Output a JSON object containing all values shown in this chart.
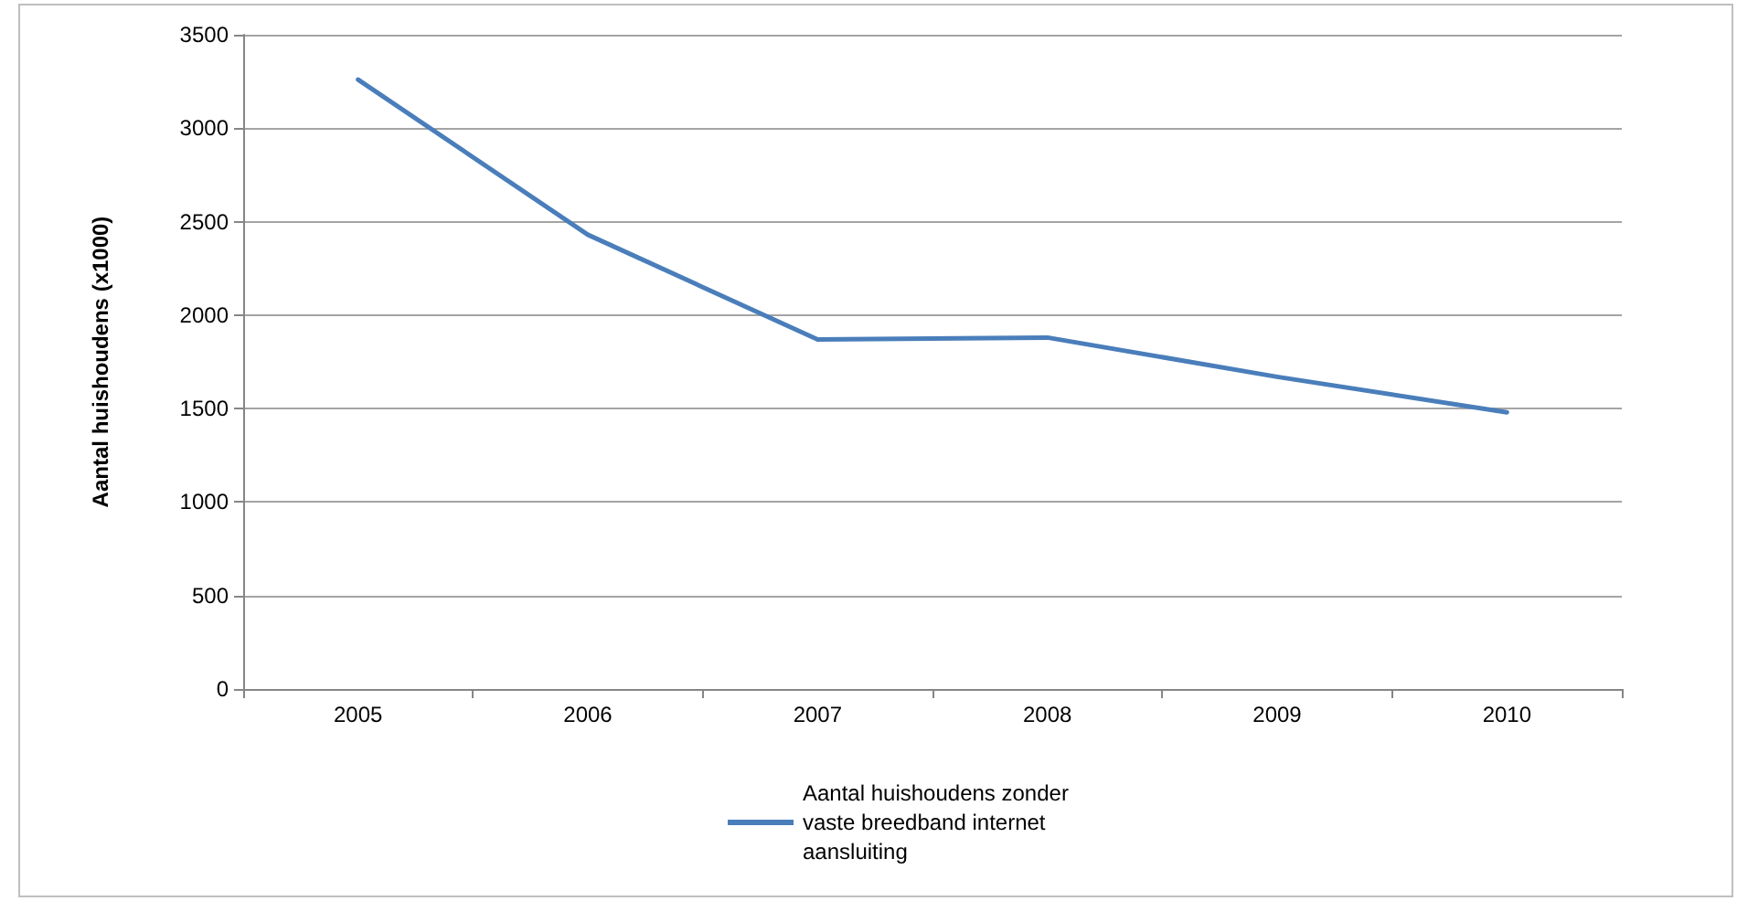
{
  "chart_data": {
    "type": "line",
    "ylabel": "Aantal huishoudens (x1000)",
    "categories": [
      "2005",
      "2006",
      "2007",
      "2008",
      "2009",
      "2010"
    ],
    "series": [
      {
        "name": "Aantal huishoudens zonder vaste breedband internet aansluiting",
        "color": "#4a7ebb",
        "values": [
          3260,
          2430,
          1870,
          1880,
          1670,
          1480
        ]
      }
    ],
    "ylim": [
      0,
      3500
    ],
    "yticks": [
      0,
      500,
      1000,
      1500,
      2000,
      2500,
      3000,
      3500
    ],
    "grid": "y",
    "legend": "bottom",
    "marker": "none",
    "line_style": "solid"
  }
}
